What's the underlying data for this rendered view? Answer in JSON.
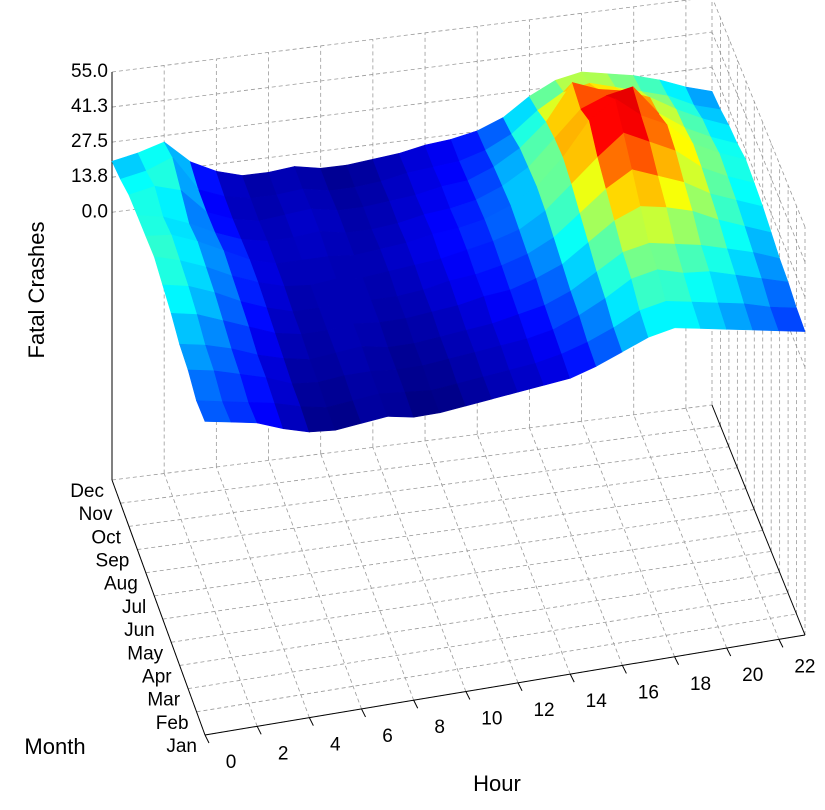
{
  "chart_data": {
    "type": "surface",
    "x_label": "Hour",
    "y_label": "Month",
    "z_label": "Fatal Crashes",
    "x": [
      0,
      1,
      2,
      3,
      4,
      5,
      6,
      7,
      8,
      9,
      10,
      11,
      12,
      13,
      14,
      15,
      16,
      17,
      18,
      19,
      20,
      21,
      22,
      23
    ],
    "xlim": [
      0,
      23
    ],
    "xticks": [
      0,
      2,
      4,
      6,
      8,
      10,
      12,
      14,
      16,
      18,
      20,
      22
    ],
    "categories": [
      "Jan",
      "Feb",
      "Mar",
      "Apr",
      "May",
      "Jun",
      "Jul",
      "Aug",
      "Sep",
      "Oct",
      "Nov",
      "Dec"
    ],
    "zlim": [
      -105,
      55
    ],
    "zticks": [
      {
        "value": 0,
        "label": "0.0"
      },
      {
        "value": 13.75,
        "label": "13.8"
      },
      {
        "value": 27.5,
        "label": "27.5"
      },
      {
        "value": 41.25,
        "label": "41.3"
      },
      {
        "value": 55,
        "label": "55.0"
      }
    ],
    "grid": true,
    "colormap": "jet",
    "z": [
      [
        18,
        16,
        14,
        10,
        7,
        6,
        7,
        8,
        6,
        6,
        7,
        8,
        9,
        10,
        11,
        14,
        18,
        22,
        24,
        22,
        20,
        18,
        16,
        14
      ],
      [
        17,
        15,
        13,
        11,
        8,
        6,
        7,
        8,
        7,
        6,
        7,
        8,
        9,
        10,
        12,
        15,
        19,
        24,
        26,
        24,
        22,
        20,
        17,
        15
      ],
      [
        20,
        18,
        15,
        12,
        8,
        7,
        8,
        8,
        7,
        7,
        8,
        9,
        10,
        11,
        13,
        17,
        22,
        28,
        30,
        27,
        26,
        23,
        20,
        17
      ],
      [
        21,
        19,
        16,
        12,
        9,
        7,
        8,
        9,
        7,
        7,
        8,
        9,
        10,
        12,
        14,
        18,
        24,
        30,
        32,
        30,
        28,
        25,
        22,
        18
      ],
      [
        24,
        22,
        18,
        14,
        10,
        8,
        8,
        9,
        8,
        8,
        9,
        10,
        12,
        13,
        16,
        20,
        27,
        34,
        38,
        36,
        33,
        28,
        24,
        20
      ],
      [
        26,
        24,
        20,
        15,
        11,
        8,
        8,
        9,
        8,
        8,
        9,
        11,
        12,
        14,
        17,
        22,
        30,
        38,
        44,
        40,
        36,
        30,
        26,
        22
      ],
      [
        28,
        25,
        21,
        16,
        12,
        9,
        8,
        9,
        8,
        9,
        10,
        11,
        13,
        15,
        18,
        24,
        33,
        42,
        50,
        45,
        40,
        32,
        27,
        23
      ],
      [
        27,
        26,
        22,
        17,
        12,
        9,
        9,
        9,
        8,
        9,
        10,
        12,
        13,
        15,
        19,
        25,
        35,
        48,
        55,
        47,
        42,
        33,
        28,
        24
      ],
      [
        26,
        24,
        20,
        15,
        11,
        9,
        9,
        10,
        8,
        8,
        9,
        11,
        12,
        14,
        18,
        24,
        34,
        44,
        48,
        50,
        38,
        31,
        26,
        22
      ],
      [
        25,
        27,
        24,
        14,
        10,
        8,
        9,
        10,
        8,
        8,
        9,
        10,
        12,
        13,
        17,
        23,
        32,
        46,
        42,
        40,
        36,
        30,
        25,
        21
      ],
      [
        22,
        24,
        28,
        14,
        10,
        8,
        8,
        9,
        7,
        7,
        8,
        10,
        11,
        12,
        15,
        20,
        28,
        34,
        36,
        33,
        30,
        27,
        22,
        19
      ],
      [
        20,
        22,
        25,
        16,
        11,
        8,
        8,
        9,
        7,
        7,
        8,
        9,
        11,
        12,
        14,
        18,
        25,
        30,
        32,
        30,
        28,
        25,
        21,
        18
      ]
    ]
  }
}
